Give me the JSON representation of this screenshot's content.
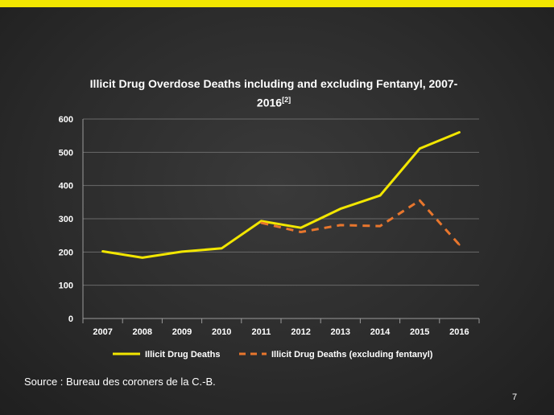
{
  "slide": {
    "source": "Source : Bureau des coroners de la C.-B.",
    "page_number": "7",
    "accent_color": "#f2e600"
  },
  "chart_data": {
    "type": "line",
    "title": "Illicit Drug Overdose Deaths including and excluding Fentanyl, 2007-2016",
    "title_reference": "[2]",
    "xlabel": "",
    "ylabel": "",
    "categories": [
      "2007",
      "2008",
      "2009",
      "2010",
      "2011",
      "2012",
      "2013",
      "2014",
      "2015",
      "2016"
    ],
    "ylim": [
      0,
      600
    ],
    "yticks": [
      0,
      100,
      200,
      300,
      400,
      500,
      600
    ],
    "grid": true,
    "legend": "bottom",
    "series": [
      {
        "name": "Illicit Drug Deaths",
        "color": "#f2e600",
        "style": "solid",
        "values": [
          202,
          183,
          201,
          211,
          293,
          273,
          330,
          370,
          511,
          560
        ]
      },
      {
        "name": "Illicit Drug Deaths (excluding fentanyl)",
        "color": "#e8762d",
        "style": "dashed",
        "values": [
          null,
          null,
          null,
          null,
          288,
          260,
          281,
          278,
          355,
          222
        ]
      }
    ]
  }
}
